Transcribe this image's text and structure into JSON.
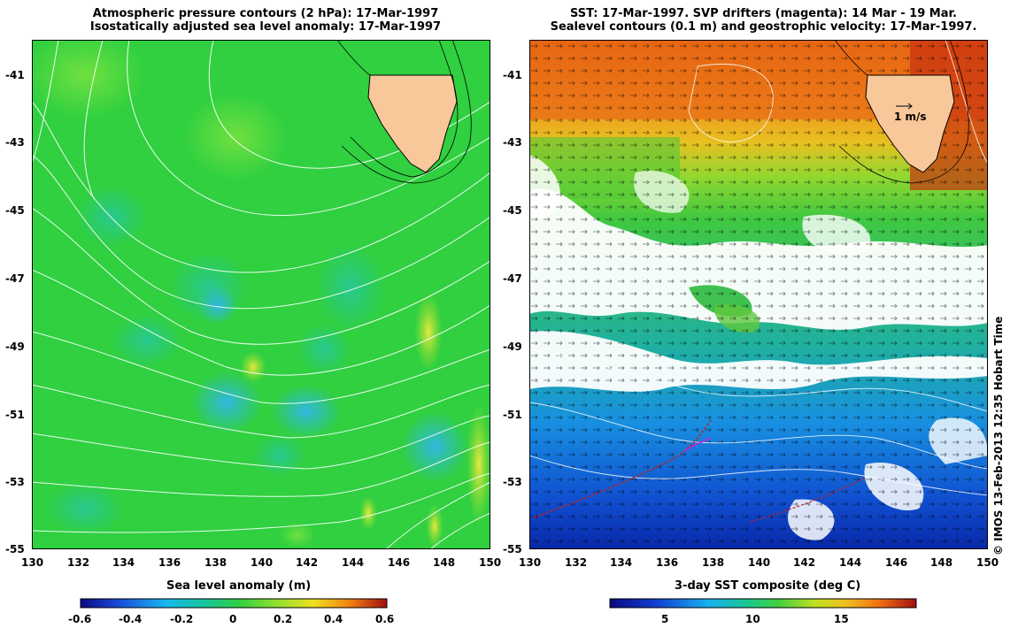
{
  "left_panel": {
    "title_line1": "Atmospheric pressure contours (2 hPa): 17-Mar-1997",
    "title_line2": "Isostatically adjusted sea level anomaly: 17-Mar-1997",
    "y_ticks": [
      "-41",
      "-43",
      "-45",
      "-47",
      "-49",
      "-51",
      "-53",
      "-55"
    ],
    "x_ticks": [
      "130",
      "132",
      "134",
      "136",
      "138",
      "140",
      "142",
      "144",
      "146",
      "148",
      "150"
    ],
    "colorbar_label": "Sea level anomaly (m)",
    "colorbar_ticks": [
      "-0.6",
      "-0.4",
      "-0.2",
      "0",
      "0.2",
      "0.4",
      "0.6"
    ]
  },
  "right_panel": {
    "title_line1": "SST: 17-Mar-1997. SVP drifters (magenta): 14 Mar - 19 Mar.",
    "title_line2": "Sealevel contours (0.1 m) and geostrophic velocity: 17-Mar-1997.",
    "y_ticks": [
      "-41",
      "-43",
      "-45",
      "-47",
      "-49",
      "-51",
      "-53",
      "-55"
    ],
    "x_ticks": [
      "130",
      "132",
      "134",
      "136",
      "138",
      "140",
      "142",
      "144",
      "146",
      "148",
      "150"
    ],
    "velocity_scale_label": "1 m/s",
    "colorbar_label": "3-day SST composite (deg C)",
    "colorbar_ticks": [
      "5",
      "10",
      "15"
    ]
  },
  "credit": "© IMOS 13-Feb-2013 12:35 Hobart Time",
  "colors": {
    "land": "#f8c89a",
    "sla_base": "#30d040",
    "sst_warm": "#e87010",
    "sst_cold": "#1848d8",
    "drifter": "#c02020"
  }
}
